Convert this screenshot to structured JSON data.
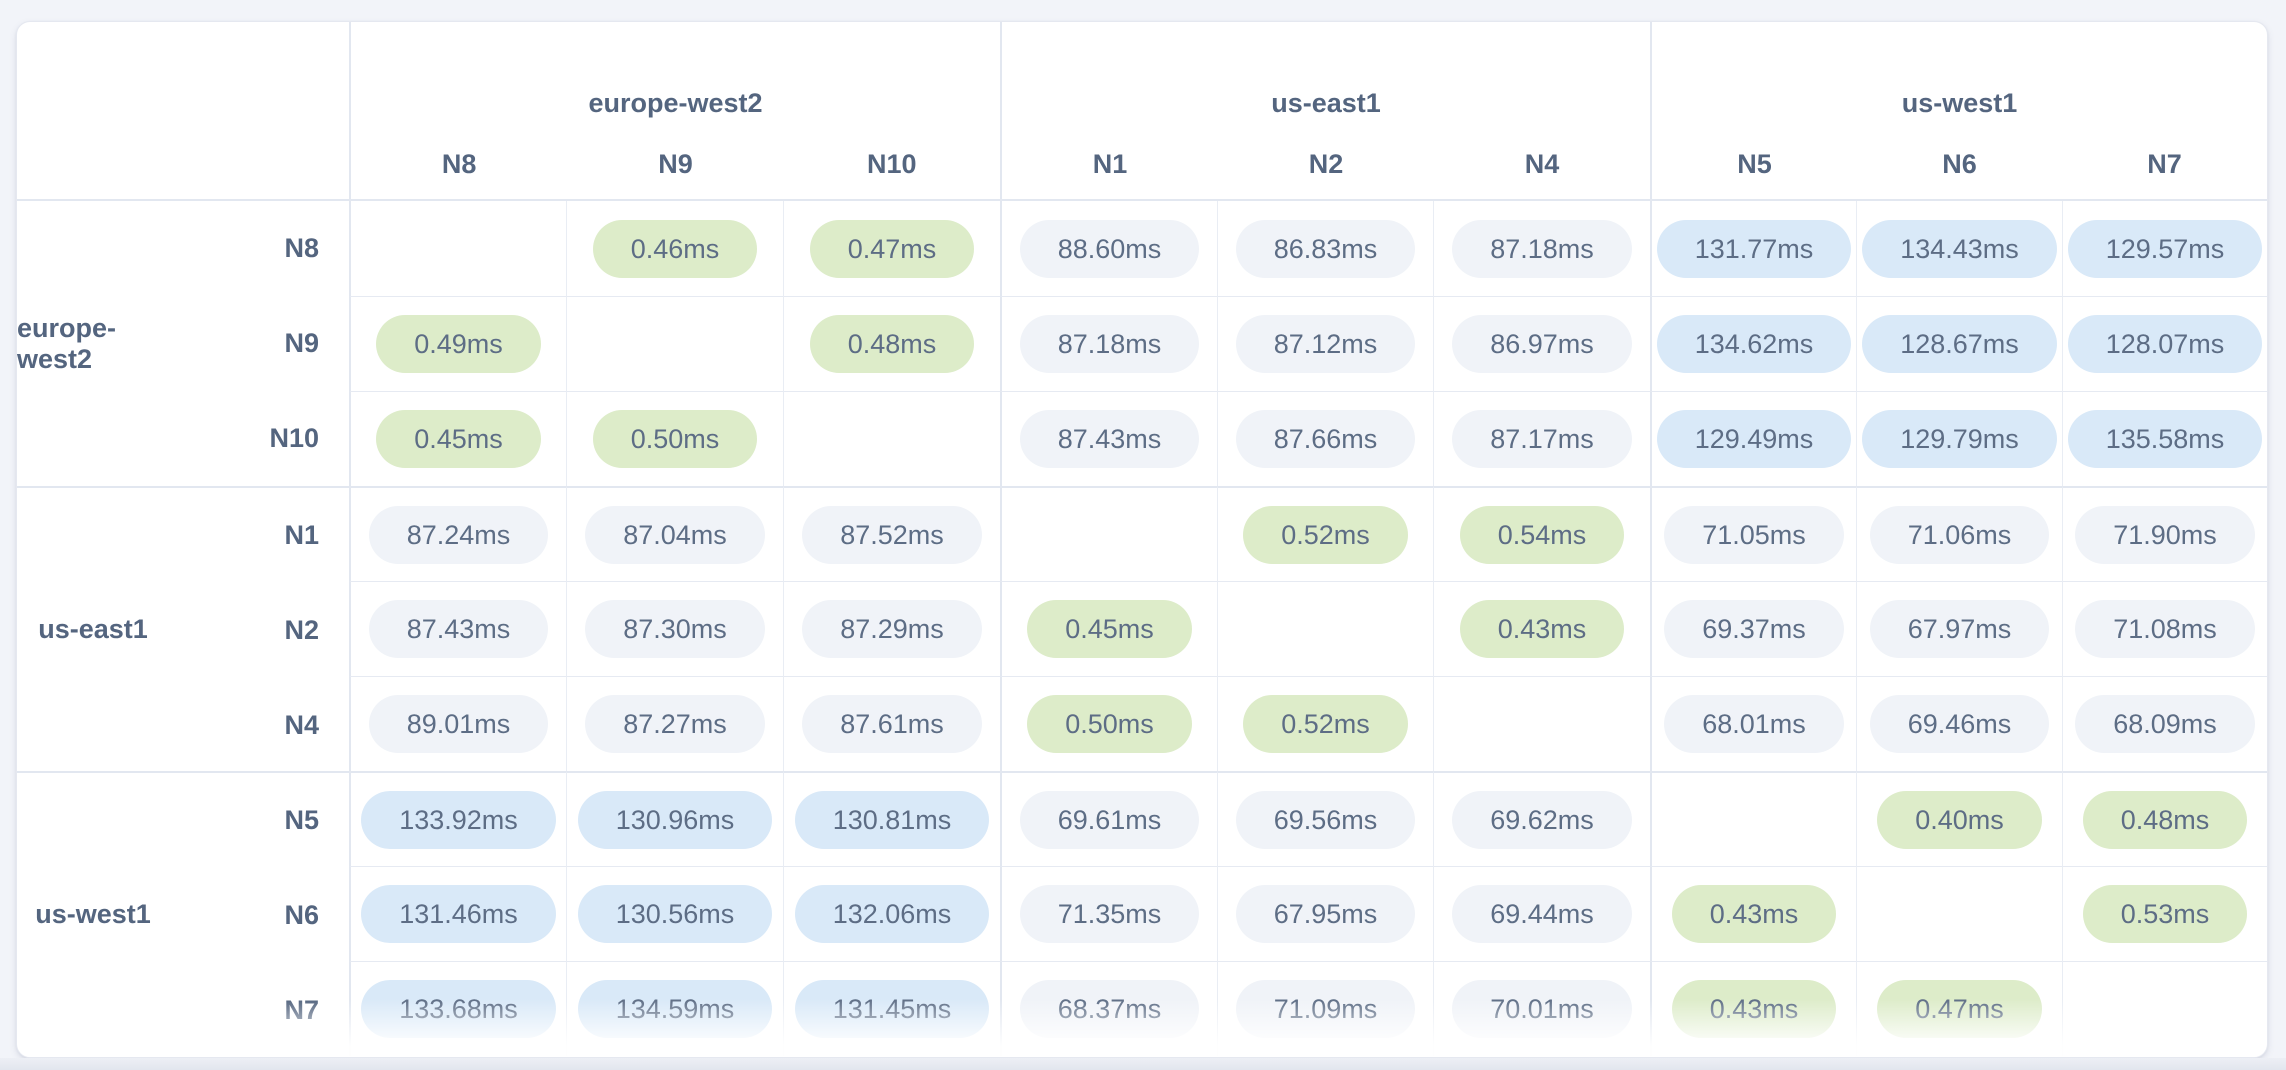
{
  "matrix": {
    "unit": "ms",
    "column_groups": [
      {
        "region": "europe-west2",
        "nodes": [
          "N8",
          "N9",
          "N10"
        ]
      },
      {
        "region": "us-east1",
        "nodes": [
          "N1",
          "N2",
          "N4"
        ]
      },
      {
        "region": "us-west1",
        "nodes": [
          "N5",
          "N6",
          "N7"
        ]
      }
    ],
    "row_groups": [
      {
        "region": "europe-west2",
        "rows": [
          {
            "node": "N8",
            "values": [
              "",
              "0.46ms",
              "0.47ms",
              "88.60ms",
              "86.83ms",
              "87.18ms",
              "131.77ms",
              "134.43ms",
              "129.57ms"
            ]
          },
          {
            "node": "N9",
            "values": [
              "0.49ms",
              "",
              "0.48ms",
              "87.18ms",
              "87.12ms",
              "86.97ms",
              "134.62ms",
              "128.67ms",
              "128.07ms"
            ]
          },
          {
            "node": "N10",
            "values": [
              "0.45ms",
              "0.50ms",
              "",
              "87.43ms",
              "87.66ms",
              "87.17ms",
              "129.49ms",
              "129.79ms",
              "135.58ms"
            ]
          }
        ]
      },
      {
        "region": "us-east1",
        "rows": [
          {
            "node": "N1",
            "values": [
              "87.24ms",
              "87.04ms",
              "87.52ms",
              "",
              "0.52ms",
              "0.54ms",
              "71.05ms",
              "71.06ms",
              "71.90ms"
            ]
          },
          {
            "node": "N2",
            "values": [
              "87.43ms",
              "87.30ms",
              "87.29ms",
              "0.45ms",
              "",
              "0.43ms",
              "69.37ms",
              "67.97ms",
              "71.08ms"
            ]
          },
          {
            "node": "N4",
            "values": [
              "89.01ms",
              "87.27ms",
              "87.61ms",
              "0.50ms",
              "0.52ms",
              "",
              "68.01ms",
              "69.46ms",
              "68.09ms"
            ]
          }
        ]
      },
      {
        "region": "us-west1",
        "rows": [
          {
            "node": "N5",
            "values": [
              "133.92ms",
              "130.96ms",
              "130.81ms",
              "69.61ms",
              "69.56ms",
              "69.62ms",
              "",
              "0.40ms",
              "0.48ms"
            ]
          },
          {
            "node": "N6",
            "values": [
              "131.46ms",
              "130.56ms",
              "132.06ms",
              "71.35ms",
              "67.95ms",
              "69.44ms",
              "0.43ms",
              "",
              "0.53ms"
            ]
          },
          {
            "node": "N7",
            "values": [
              "133.68ms",
              "134.59ms",
              "131.45ms",
              "68.37ms",
              "71.09ms",
              "70.01ms",
              "0.43ms",
              "0.47ms",
              ""
            ]
          }
        ]
      }
    ]
  },
  "colors": {
    "low_latency_green": "#ddecc9",
    "high_latency_blue": "#d9e9f8",
    "mid_latency_gray": "#f0f3f8",
    "value_text": "#5d6d85",
    "header_text": "#54657f",
    "group_border": "#e2e7f0",
    "inner_border": "#e9edf4",
    "page_background": "#f2f4f9",
    "card_background": "#ffffff"
  }
}
